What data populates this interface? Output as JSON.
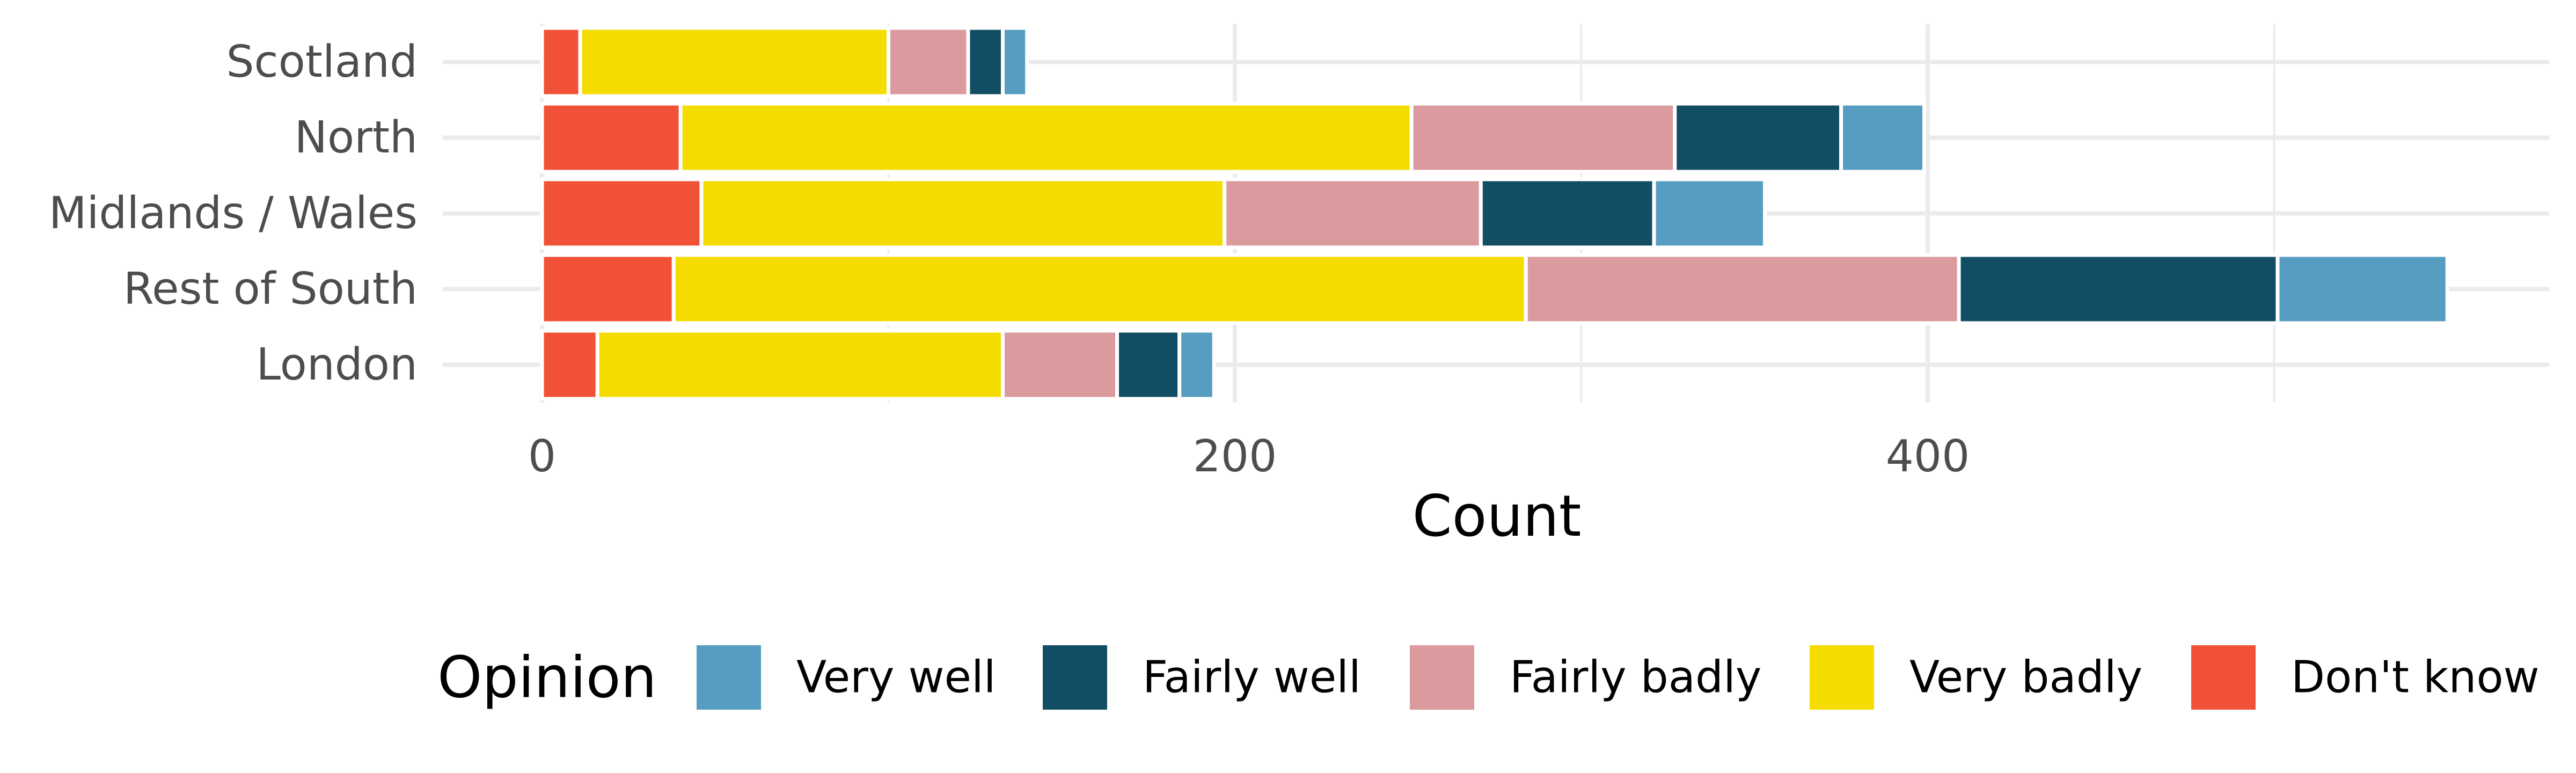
{
  "chart_data": {
    "type": "bar",
    "orientation": "horizontal",
    "stacked": true,
    "categories": [
      "Scotland",
      "North",
      "Midlands / Wales",
      "Rest of South",
      "London"
    ],
    "series": [
      {
        "name": "Don't know",
        "color": "#F15237",
        "values": [
          11,
          40,
          46,
          38,
          16
        ]
      },
      {
        "name": "Very badly",
        "color": "#F4DC00",
        "values": [
          89,
          211,
          151,
          246,
          117
        ]
      },
      {
        "name": "Fairly badly",
        "color": "#DA9A9E",
        "values": [
          23,
          76,
          74,
          125,
          33
        ]
      },
      {
        "name": "Fairly well",
        "color": "#124E63",
        "values": [
          10,
          48,
          50,
          92,
          18
        ]
      },
      {
        "name": "Very well",
        "color": "#579DC1",
        "values": [
          7,
          24,
          32,
          49,
          10
        ]
      }
    ],
    "title": "",
    "xlabel": "Count",
    "ylabel": "",
    "xlim": [
      -28,
      580
    ],
    "x_ticks": [
      0,
      200,
      400
    ],
    "x_minor_ticks": [
      100,
      300,
      500
    ],
    "grid": true,
    "legend": {
      "title": "Opinion",
      "position": "bottom",
      "order": [
        "Very well",
        "Fairly well",
        "Fairly badly",
        "Very badly",
        "Don't know"
      ]
    }
  }
}
